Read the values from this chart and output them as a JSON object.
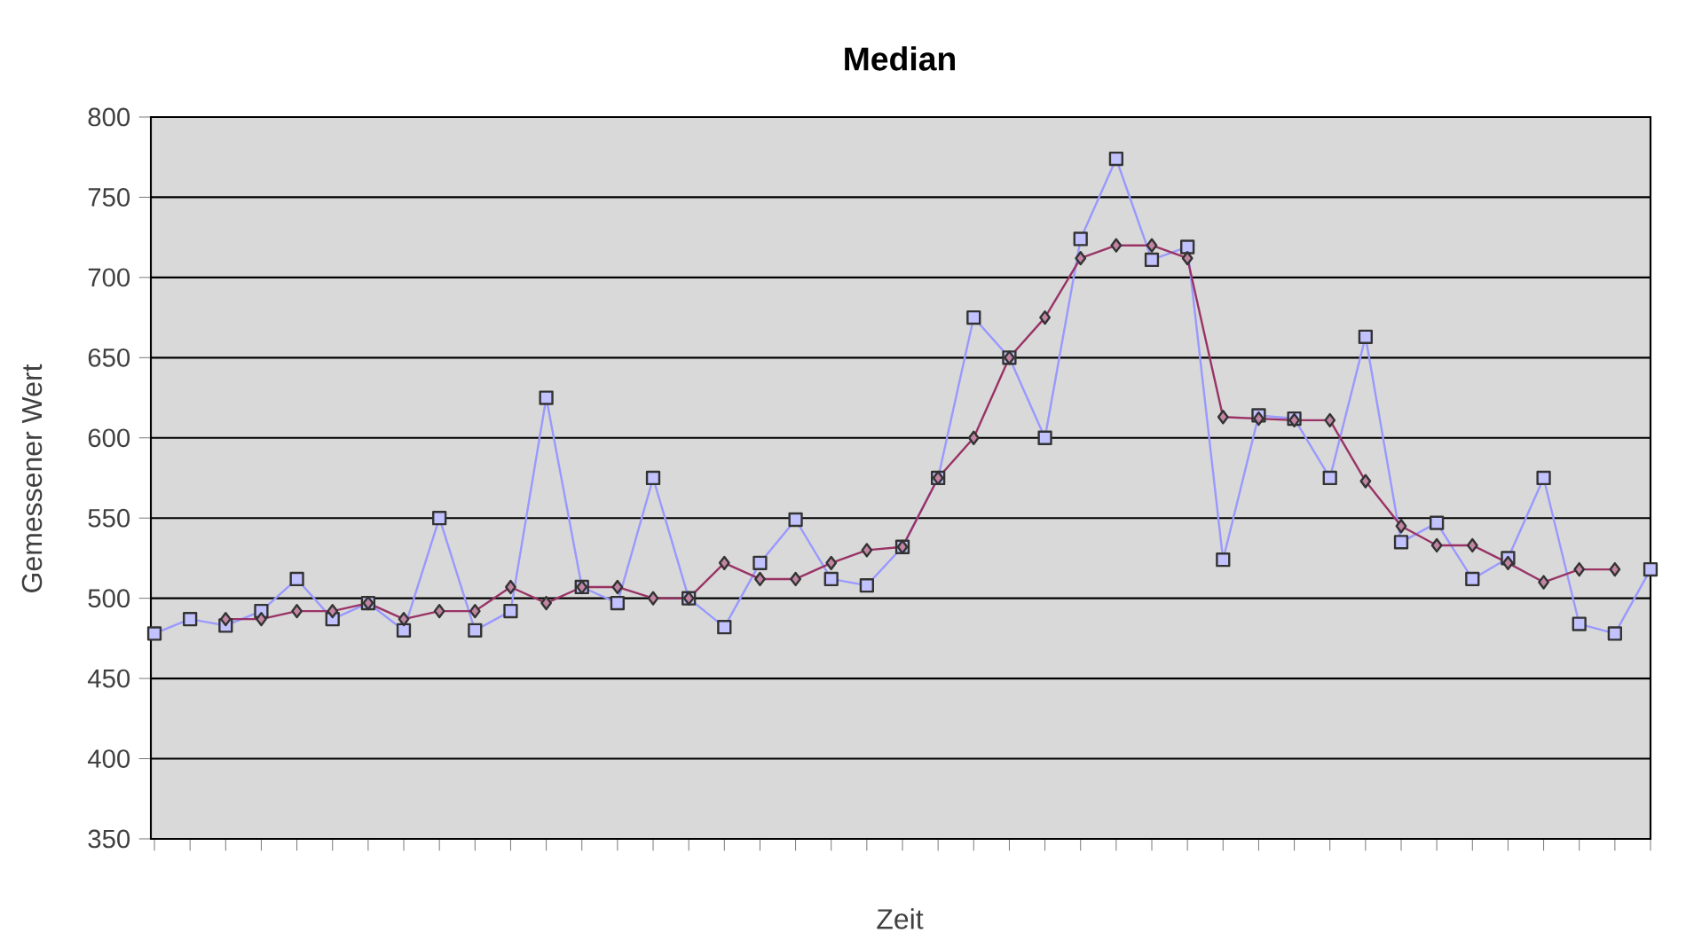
{
  "chart_data": {
    "type": "line",
    "title": "Median",
    "xlabel": "Zeit",
    "ylabel": "Gemessener Wert",
    "categories": [
      null,
      null,
      null,
      null,
      null,
      null,
      null,
      null,
      null,
      null,
      null,
      null,
      null,
      null,
      null,
      null,
      null,
      null,
      null,
      null,
      null,
      null,
      null,
      null,
      null,
      null,
      null,
      null,
      null,
      null,
      null,
      null,
      null,
      null,
      null,
      null,
      null,
      null,
      null,
      null,
      null,
      null,
      null
    ],
    "series": [
      {
        "color": "#9999ff",
        "marker": "square",
        "values": [
          478,
          487,
          483,
          492,
          512,
          487,
          497,
          480,
          550,
          480,
          492,
          625,
          507,
          497,
          575,
          500,
          482,
          522,
          549,
          512,
          508,
          532,
          575,
          675,
          650,
          600,
          724,
          774,
          711,
          719,
          524,
          614,
          612,
          575,
          663,
          535,
          547,
          512,
          525,
          575,
          484,
          478,
          518
        ]
      },
      {
        "color": "#993366",
        "marker": "diamond",
        "values": [
          null,
          null,
          487,
          487,
          492,
          492,
          497,
          487,
          492,
          492,
          507,
          497,
          507,
          507,
          500,
          500,
          522,
          512,
          512,
          522,
          530,
          532,
          575,
          600,
          650,
          675,
          712,
          720,
          720,
          712,
          613,
          612,
          611,
          611,
          573,
          545,
          533,
          533,
          522,
          510,
          518,
          518,
          null
        ]
      }
    ],
    "ylim": [
      350,
      800
    ],
    "yticks": [
      350,
      400,
      450,
      500,
      550,
      600,
      650,
      700,
      750,
      800
    ],
    "grid": "y",
    "tick_labels": "y",
    "line_style": "solid"
  }
}
